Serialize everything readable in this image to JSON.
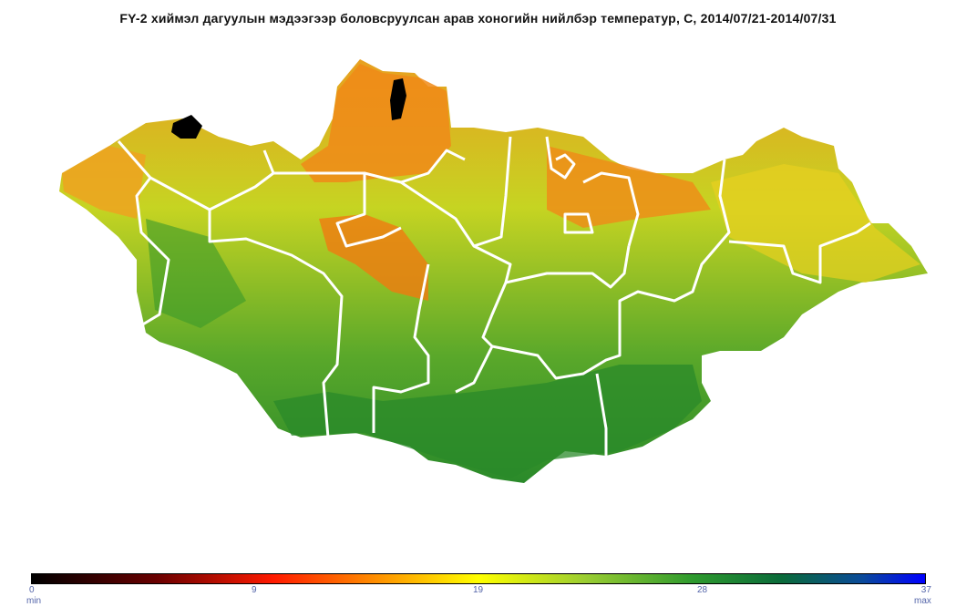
{
  "title": "FY-2 хиймэл дагуулын мэдээгээр боловсруулсан  арав хоногийн нийлбэр температур, С, 2014/07/21-2014/07/31",
  "legend": {
    "min_value": "0",
    "min_label": "min",
    "tick_1": "9",
    "tick_2": "19",
    "tick_3": "28",
    "max_value": "37",
    "max_label": "max",
    "colors": [
      "#000000",
      "#ff1a00",
      "#ff8a00",
      "#ffff00",
      "#9acd32",
      "#2e9a2e",
      "#0a6a3a",
      "#0000ff"
    ]
  },
  "map": {
    "colors": {
      "border": "#ffffff",
      "hot": "#f07a10",
      "warm": "#f2c21a",
      "mild": "#c8d820",
      "cool": "#6ab02a",
      "cold": "#2e8a2a",
      "nodata": "#000000"
    }
  }
}
